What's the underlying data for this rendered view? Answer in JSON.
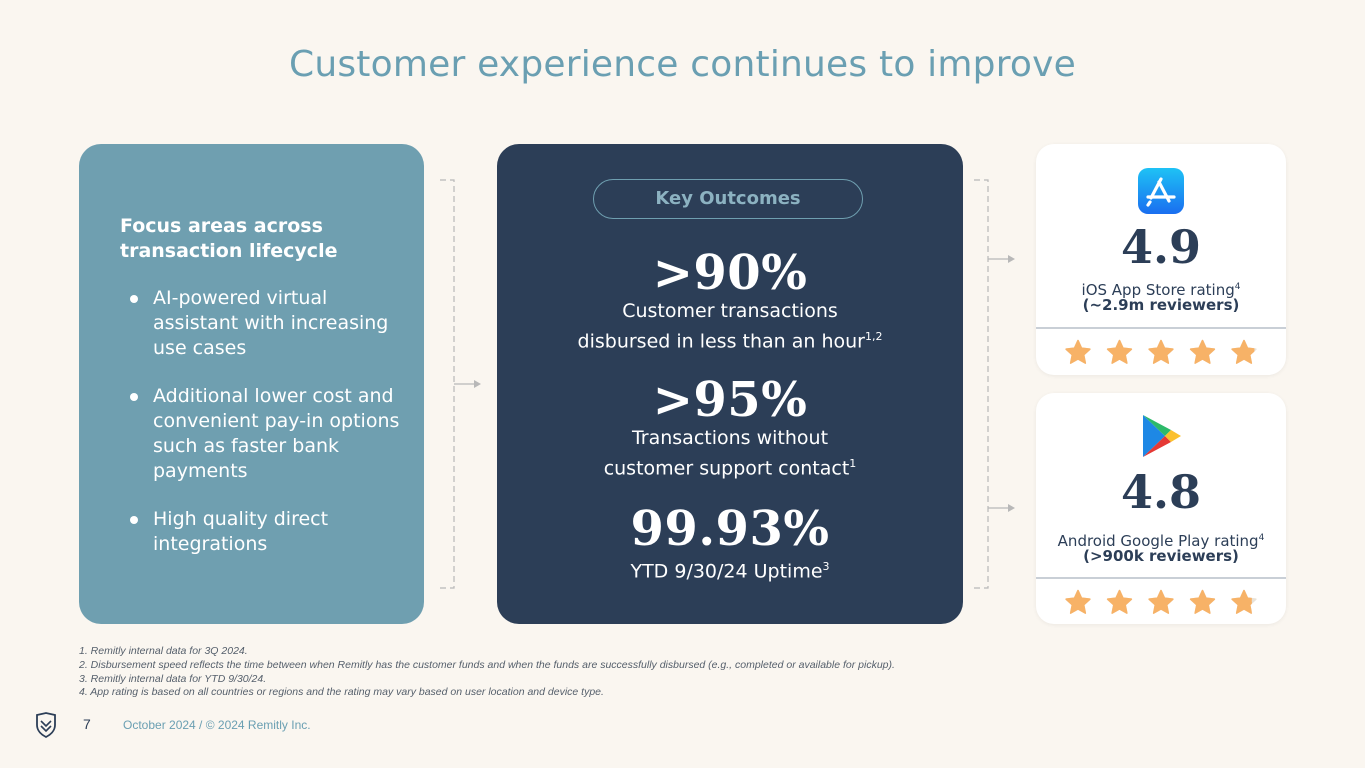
{
  "slide": {
    "title": "Customer experience continues to improve",
    "page_number": "7",
    "footer": "October 2024 / © 2024 Remitly Inc."
  },
  "focus": {
    "heading": "Focus areas across transaction lifecycle",
    "items": [
      "AI-powered virtual assistant with increasing use cases",
      "Additional lower cost and convenient pay-in options such as faster bank payments",
      "High quality direct integrations"
    ]
  },
  "outcomes": {
    "pill_label": "Key Outcomes",
    "stats": [
      {
        "value": ">90%",
        "label_line1": "Customer transactions",
        "label_line2": "disbursed in less than an hour",
        "sup": "1,2"
      },
      {
        "value": ">95%",
        "label_line1": "Transactions without",
        "label_line2": "customer support contact",
        "sup": "1"
      },
      {
        "value": "99.93%",
        "label_line1": "",
        "label_line2": "YTD 9/30/24 Uptime",
        "sup": "3"
      }
    ]
  },
  "ratings": [
    {
      "icon": "app-store-icon",
      "value": "4.9",
      "label": "iOS App Store rating",
      "sup": "4",
      "reviewers": "(~2.9m reviewers)",
      "stars": 4.9
    },
    {
      "icon": "google-play-icon",
      "value": "4.8",
      "label": "Android Google Play rating",
      "sup": "4",
      "reviewers": "(>900k reviewers)",
      "stars": 4.8
    }
  ],
  "footnotes": [
    "1. Remitly internal data for 3Q 2024.",
    "2. Disbursement speed reflects the time between when Remitly has the customer funds and when the funds are successfully disbursed (e.g., completed or available for pickup).",
    "3. Remitly internal data for YTD 9/30/24.",
    "4. App rating is based on all countries or regions and the rating may vary based on user location and device type."
  ],
  "colors": {
    "background": "#faf6f0",
    "title": "#6a9fb2",
    "focus_card": "#6f9fb0",
    "outcomes_card": "#2c3e57",
    "star": "#f7b267"
  }
}
